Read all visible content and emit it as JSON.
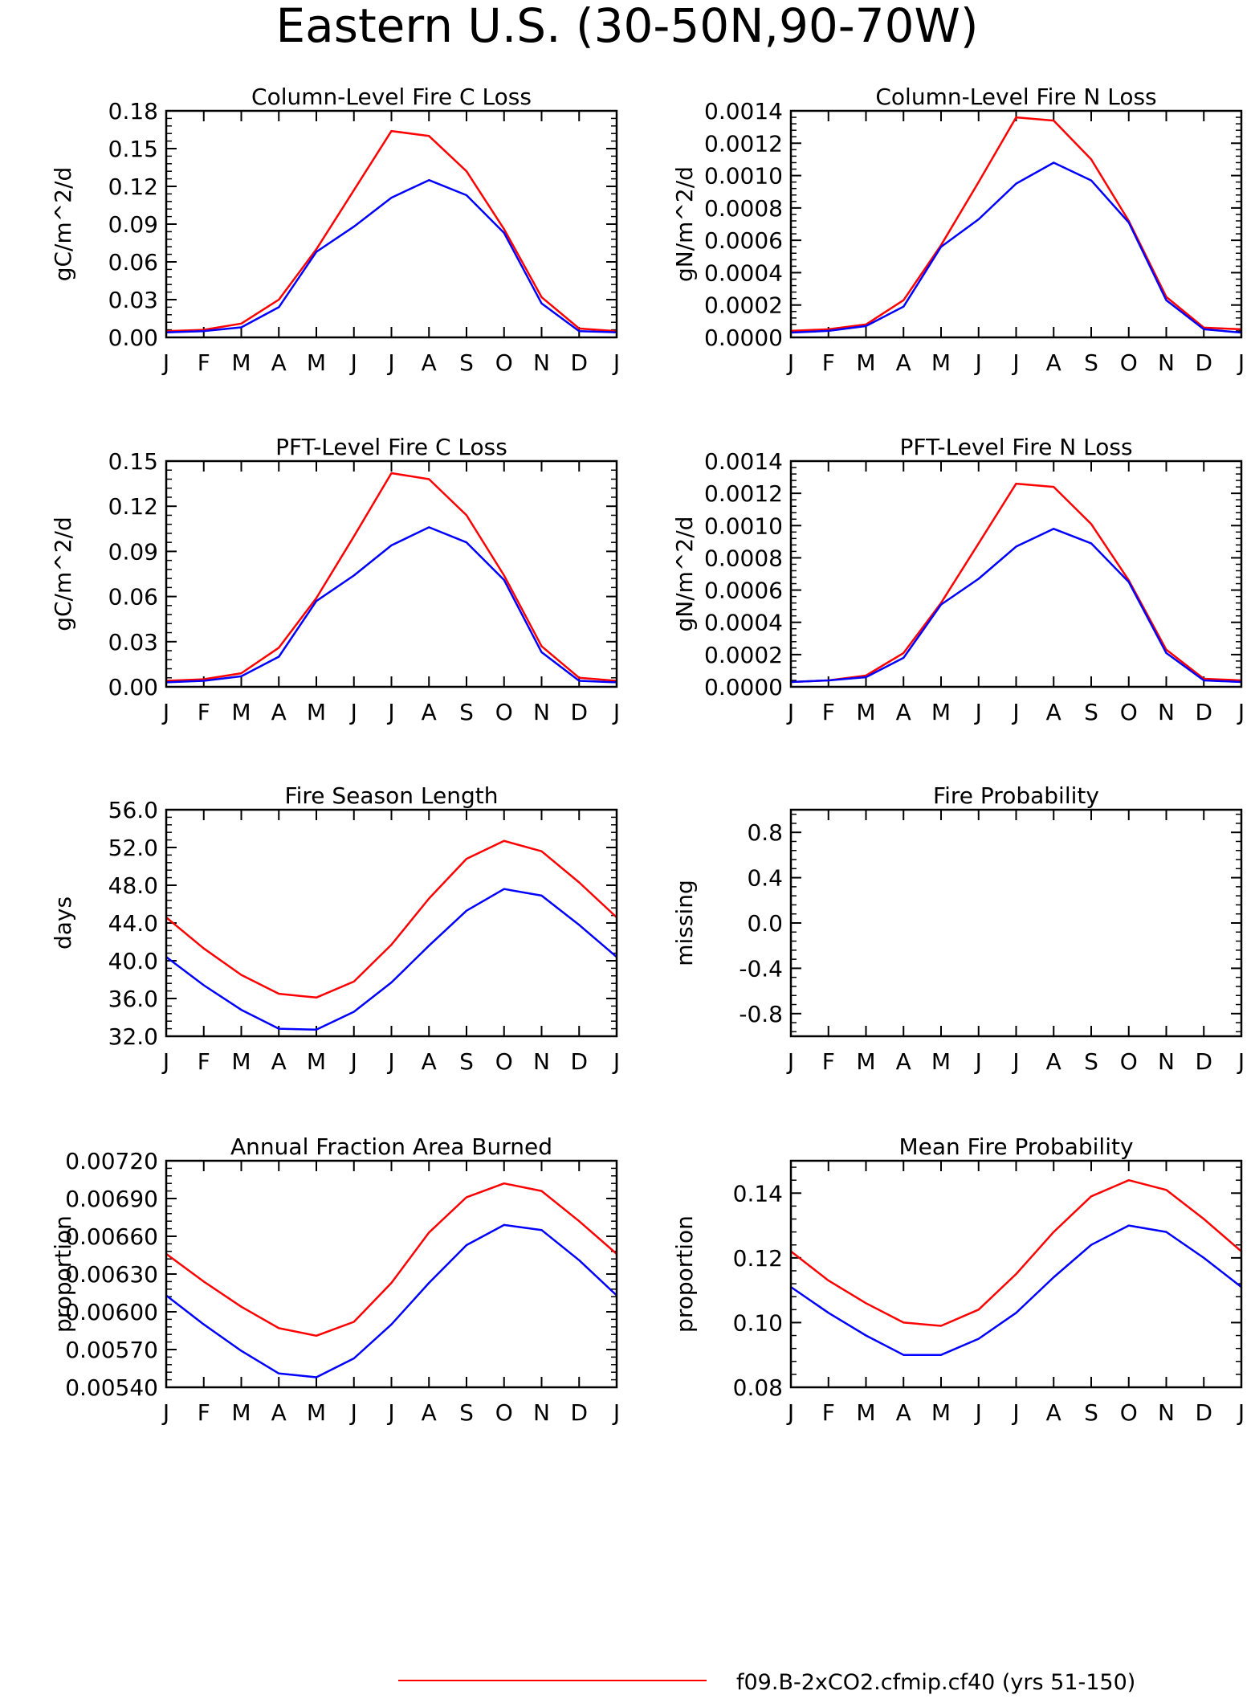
{
  "figure": {
    "title": "Eastern U.S. (30-50N,90-70W)",
    "legend": [
      {
        "label": "f09.B-2xCO2.cfmip.cf40 (yrs 51-150)",
        "color": "#ff0000"
      }
    ]
  },
  "chart_data": [
    {
      "type": "line",
      "title": "Column-Level Fire C Loss",
      "ylabel": "gC/m^2/d",
      "categories": [
        "J",
        "F",
        "M",
        "A",
        "M",
        "J",
        "J",
        "A",
        "S",
        "O",
        "N",
        "D",
        "J"
      ],
      "ylim": [
        0,
        0.18
      ],
      "yticks": [
        0.0,
        0.03,
        0.06,
        0.09,
        0.12,
        0.15,
        0.18
      ],
      "ytick_labels": [
        "0.00",
        "0.03",
        "0.06",
        "0.09",
        "0.12",
        "0.15",
        "0.18"
      ],
      "series": [
        {
          "color": "#ff0000",
          "values": [
            0.005,
            0.006,
            0.011,
            0.03,
            0.07,
            0.117,
            0.164,
            0.16,
            0.132,
            0.086,
            0.032,
            0.007,
            0.005
          ]
        },
        {
          "color": "#0000ff",
          "values": [
            0.004,
            0.005,
            0.008,
            0.024,
            0.068,
            0.088,
            0.111,
            0.125,
            0.113,
            0.083,
            0.027,
            0.005,
            0.004
          ]
        }
      ]
    },
    {
      "type": "line",
      "title": "Column-Level Fire N Loss",
      "ylabel": "gN/m^2/d",
      "categories": [
        "J",
        "F",
        "M",
        "A",
        "M",
        "J",
        "J",
        "A",
        "S",
        "O",
        "N",
        "D",
        "J"
      ],
      "ylim": [
        0,
        0.0014
      ],
      "yticks": [
        0,
        0.0002,
        0.0004,
        0.0006,
        0.0008,
        0.001,
        0.0012,
        0.0014
      ],
      "ytick_labels": [
        "0.0000",
        "0.0002",
        "0.0004",
        "0.0006",
        "0.0008",
        "0.0010",
        "0.0012",
        "0.0014"
      ],
      "series": [
        {
          "color": "#ff0000",
          "values": [
            4e-05,
            5e-05,
            8e-05,
            0.00023,
            0.00057,
            0.00096,
            0.00136,
            0.00134,
            0.0011,
            0.00072,
            0.00025,
            6e-05,
            5e-05
          ]
        },
        {
          "color": "#0000ff",
          "values": [
            3e-05,
            4e-05,
            7e-05,
            0.00019,
            0.00056,
            0.00073,
            0.00095,
            0.00108,
            0.00097,
            0.00071,
            0.00023,
            5e-05,
            3e-05
          ]
        }
      ]
    },
    {
      "type": "line",
      "title": "PFT-Level Fire C Loss",
      "ylabel": "gC/m^2/d",
      "categories": [
        "J",
        "F",
        "M",
        "A",
        "M",
        "J",
        "J",
        "A",
        "S",
        "O",
        "N",
        "D",
        "J"
      ],
      "ylim": [
        0,
        0.15
      ],
      "yticks": [
        0.0,
        0.03,
        0.06,
        0.09,
        0.12,
        0.15
      ],
      "ytick_labels": [
        "0.00",
        "0.03",
        "0.06",
        "0.09",
        "0.12",
        "0.15"
      ],
      "series": [
        {
          "color": "#ff0000",
          "values": [
            0.004,
            0.005,
            0.009,
            0.026,
            0.059,
            0.1,
            0.142,
            0.138,
            0.114,
            0.074,
            0.027,
            0.006,
            0.004
          ]
        },
        {
          "color": "#0000ff",
          "values": [
            0.003,
            0.004,
            0.007,
            0.02,
            0.057,
            0.074,
            0.094,
            0.106,
            0.096,
            0.071,
            0.023,
            0.004,
            0.003
          ]
        }
      ]
    },
    {
      "type": "line",
      "title": "PFT-Level Fire N Loss",
      "ylabel": "gN/m^2/d",
      "categories": [
        "J",
        "F",
        "M",
        "A",
        "M",
        "J",
        "J",
        "A",
        "S",
        "O",
        "N",
        "D",
        "J"
      ],
      "ylim": [
        0,
        0.0014
      ],
      "yticks": [
        0,
        0.0002,
        0.0004,
        0.0006,
        0.0008,
        0.001,
        0.0012,
        0.0014
      ],
      "ytick_labels": [
        "0.0000",
        "0.0002",
        "0.0004",
        "0.0006",
        "0.0008",
        "0.0010",
        "0.0012",
        "0.0014"
      ],
      "series": [
        {
          "color": "#ff0000",
          "values": [
            3e-05,
            4e-05,
            7e-05,
            0.00021,
            0.00052,
            0.00089,
            0.00126,
            0.00124,
            0.00101,
            0.00066,
            0.00023,
            5e-05,
            4e-05
          ]
        },
        {
          "color": "#0000ff",
          "values": [
            3e-05,
            4e-05,
            6e-05,
            0.00018,
            0.00051,
            0.00067,
            0.00087,
            0.00098,
            0.00089,
            0.00065,
            0.00021,
            4e-05,
            3e-05
          ]
        }
      ]
    },
    {
      "type": "line",
      "title": "Fire Season Length",
      "ylabel": "days",
      "categories": [
        "J",
        "F",
        "M",
        "A",
        "M",
        "J",
        "J",
        "A",
        "S",
        "O",
        "N",
        "D",
        "J"
      ],
      "ylim": [
        32,
        56
      ],
      "yticks": [
        32,
        36,
        40,
        44,
        48,
        52,
        56
      ],
      "ytick_labels": [
        "32.0",
        "36.0",
        "40.0",
        "44.0",
        "48.0",
        "52.0",
        "56.0"
      ],
      "series": [
        {
          "color": "#ff0000",
          "values": [
            44.6,
            41.3,
            38.5,
            36.5,
            36.1,
            37.8,
            41.7,
            46.6,
            50.8,
            52.7,
            51.6,
            48.3,
            44.6
          ]
        },
        {
          "color": "#0000ff",
          "values": [
            40.4,
            37.4,
            34.8,
            32.8,
            32.7,
            34.6,
            37.7,
            41.6,
            45.3,
            47.6,
            46.9,
            43.8,
            40.4
          ]
        }
      ]
    },
    {
      "type": "line",
      "title": "Fire Probability",
      "ylabel": "missing",
      "categories": [
        "J",
        "F",
        "M",
        "A",
        "M",
        "J",
        "J",
        "A",
        "S",
        "O",
        "N",
        "D",
        "J"
      ],
      "ylim": [
        -1,
        1
      ],
      "yticks": [
        -0.8,
        -0.4,
        0.0,
        0.4,
        0.8
      ],
      "ytick_labels": [
        "-0.8",
        "-0.4",
        "0.0",
        "0.4",
        "0.8"
      ],
      "series": []
    },
    {
      "type": "line",
      "title": "Annual Fraction Area Burned",
      "ylabel": "proportion",
      "categories": [
        "J",
        "F",
        "M",
        "A",
        "M",
        "J",
        "J",
        "A",
        "S",
        "O",
        "N",
        "D",
        "J"
      ],
      "ylim": [
        0.0054,
        0.0072
      ],
      "yticks": [
        0.0054,
        0.0057,
        0.006,
        0.0063,
        0.0066,
        0.0069,
        0.0072
      ],
      "ytick_labels": [
        "0.00540",
        "0.00570",
        "0.00600",
        "0.00630",
        "0.00660",
        "0.00690",
        "0.00720"
      ],
      "series": [
        {
          "color": "#ff0000",
          "values": [
            0.00646,
            0.00624,
            0.00604,
            0.00587,
            0.00581,
            0.00592,
            0.00623,
            0.00663,
            0.00691,
            0.00702,
            0.00696,
            0.00672,
            0.00646
          ]
        },
        {
          "color": "#0000ff",
          "values": [
            0.00613,
            0.0059,
            0.00569,
            0.00551,
            0.00548,
            0.00563,
            0.0059,
            0.00623,
            0.00653,
            0.00669,
            0.00665,
            0.00641,
            0.00613
          ]
        }
      ]
    },
    {
      "type": "line",
      "title": "Mean Fire Probability",
      "ylabel": "proportion",
      "categories": [
        "J",
        "F",
        "M",
        "A",
        "M",
        "J",
        "J",
        "A",
        "S",
        "O",
        "N",
        "D",
        "J"
      ],
      "ylim": [
        0.08,
        0.15
      ],
      "yticks": [
        0.08,
        0.1,
        0.12,
        0.14
      ],
      "ytick_labels": [
        "0.08",
        "0.10",
        "0.12",
        "0.14"
      ],
      "series": [
        {
          "color": "#ff0000",
          "values": [
            0.122,
            0.113,
            0.106,
            0.1,
            0.099,
            0.104,
            0.115,
            0.128,
            0.139,
            0.144,
            0.141,
            0.132,
            0.122
          ]
        },
        {
          "color": "#0000ff",
          "values": [
            0.111,
            0.103,
            0.096,
            0.09,
            0.09,
            0.095,
            0.103,
            0.114,
            0.124,
            0.13,
            0.128,
            0.12,
            0.111
          ]
        }
      ]
    }
  ]
}
